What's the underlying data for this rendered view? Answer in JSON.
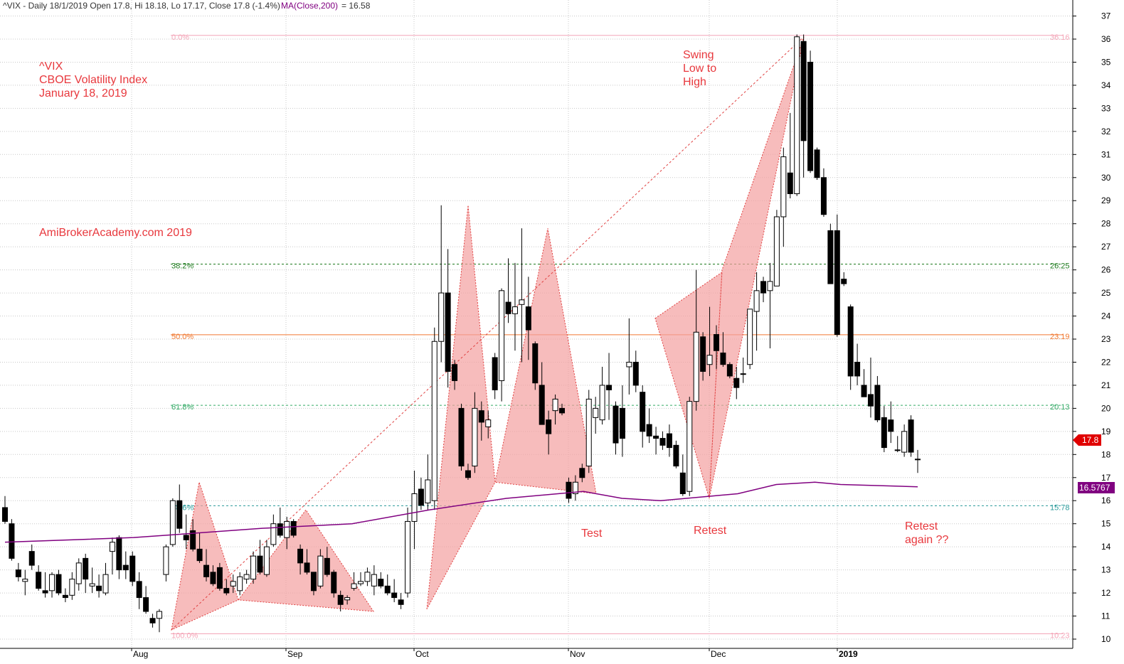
{
  "header": {
    "symbol_info": "^VIX - Daily 18/1/2019 Open 17.8, Hi 18.18, Lo 17.17, Close 17.8 (-1.4%)",
    "ma_label": "MA(Close,200)",
    "ma_value": "= 16.58"
  },
  "annotations": {
    "title_1": "^VIX",
    "title_2": "CBOE Volatility Index",
    "title_3": "January 18, 2019",
    "site": "AmiBrokerAcademy.com  2019",
    "swing_1": "Swing",
    "swing_2": "Low to",
    "swing_3": "High",
    "test": "Test",
    "retest": "Retest",
    "retest_again_1": "Retest",
    "retest_again_2": "again ??"
  },
  "price_labels": {
    "close": "17.8",
    "ma": "16.5767"
  },
  "colors": {
    "accent_red": "#e8383d",
    "ma_line": "#800080",
    "pattern_fill": "#f4a0a0",
    "fib_0_100": "#f4a6b8",
    "fib_382": "#1d7a1d",
    "fib_500": "#f07830",
    "fib_618": "#33aa66",
    "fib_786": "#2a9a9a"
  },
  "chart_data": {
    "type": "candlestick",
    "y_axis": {
      "min": 10,
      "max": 37,
      "ticks": [
        10,
        11,
        12,
        13,
        14,
        15,
        16,
        17,
        18,
        19,
        20,
        21,
        22,
        23,
        24,
        25,
        26,
        27,
        28,
        29,
        30,
        31,
        32,
        33,
        34,
        35,
        36,
        37
      ],
      "position": "right"
    },
    "x_axis": {
      "labels": [
        {
          "label": "Aug",
          "day": 5
        },
        {
          "label": "Sep",
          "day": 17
        },
        {
          "label": "Oct",
          "day": 27
        },
        {
          "label": "Nov",
          "day": 39
        },
        {
          "label": "Dec",
          "day": 50
        },
        {
          "label": "2019",
          "day": 60
        }
      ]
    },
    "grid": true,
    "fibonacci_levels": [
      {
        "pct": "0.0%",
        "price": 36.16,
        "price_label": "36.16"
      },
      {
        "pct": "38.2%",
        "price": 26.25,
        "price_label": "26.25"
      },
      {
        "pct": "50.0%",
        "price": 23.19,
        "price_label": "23.19"
      },
      {
        "pct": "61.8%",
        "price": 20.13,
        "price_label": "20.13"
      },
      {
        "pct": "78.6%",
        "price": 15.78,
        "price_label": "15.78"
      },
      {
        "pct": "100.0%",
        "price": 10.23,
        "price_label": "10.23"
      }
    ],
    "ma200": {
      "name": "MA(Close,200)",
      "points": [
        [
          0,
          14.2
        ],
        [
          10,
          14.4
        ],
        [
          20,
          14.8
        ],
        [
          27,
          15.0
        ],
        [
          33,
          15.6
        ],
        [
          39,
          16.1
        ],
        [
          45,
          16.4
        ],
        [
          48,
          16.1
        ],
        [
          51,
          16.0
        ],
        [
          55,
          16.2
        ],
        [
          57,
          16.3
        ],
        [
          60,
          16.7
        ],
        [
          63,
          16.8
        ],
        [
          65,
          16.7
        ],
        [
          71,
          16.6
        ]
      ]
    },
    "candles": [
      {
        "o": 15.7,
        "h": 16.2,
        "l": 15.0,
        "c": 15.1
      },
      {
        "o": 15.0,
        "h": 15.2,
        "l": 13.4,
        "c": 13.5
      },
      {
        "o": 13.0,
        "h": 13.3,
        "l": 12.5,
        "c": 12.7
      },
      {
        "o": 12.5,
        "h": 13.0,
        "l": 11.9,
        "c": 12.6
      },
      {
        "o": 13.8,
        "h": 14.1,
        "l": 13.0,
        "c": 13.2
      },
      {
        "o": 12.9,
        "h": 13.2,
        "l": 12.1,
        "c": 12.2
      },
      {
        "o": 12.1,
        "h": 12.9,
        "l": 11.8,
        "c": 12.0
      },
      {
        "o": 12.1,
        "h": 12.9,
        "l": 11.8,
        "c": 12.8
      },
      {
        "o": 12.8,
        "h": 13.0,
        "l": 11.9,
        "c": 12.0
      },
      {
        "o": 11.9,
        "h": 12.2,
        "l": 11.6,
        "c": 11.8
      },
      {
        "o": 11.9,
        "h": 12.9,
        "l": 11.7,
        "c": 12.6
      },
      {
        "o": 12.4,
        "h": 13.5,
        "l": 12.1,
        "c": 13.3
      },
      {
        "o": 13.5,
        "h": 13.7,
        "l": 12.0,
        "c": 12.6
      },
      {
        "o": 12.3,
        "h": 13.1,
        "l": 12.0,
        "c": 12.4
      },
      {
        "o": 12.3,
        "h": 12.8,
        "l": 11.8,
        "c": 12.1
      },
      {
        "o": 12.0,
        "h": 13.3,
        "l": 11.9,
        "c": 12.8
      },
      {
        "o": 13.8,
        "h": 14.4,
        "l": 12.8,
        "c": 14.2
      },
      {
        "o": 14.4,
        "h": 14.5,
        "l": 12.6,
        "c": 13.0
      },
      {
        "o": 13.2,
        "h": 13.8,
        "l": 12.6,
        "c": 13.0
      },
      {
        "o": 13.6,
        "h": 13.8,
        "l": 12.3,
        "c": 12.5
      },
      {
        "o": 12.5,
        "h": 12.9,
        "l": 11.3,
        "c": 11.8
      },
      {
        "o": 11.8,
        "h": 12.3,
        "l": 11.1,
        "c": 11.2
      },
      {
        "o": 10.9,
        "h": 11.1,
        "l": 10.5,
        "c": 10.7
      },
      {
        "o": 10.9,
        "h": 11.3,
        "l": 10.3,
        "c": 11.2
      }
    ],
    "candle_days_note": "Candles listed for the first trading days shown; additional candles drawn from candles_2",
    "candles_2": [
      {
        "o": 12.8,
        "h": 14.1,
        "l": 12.5,
        "c": 14.0
      },
      {
        "o": 14.1,
        "h": 16.1,
        "l": 14.0,
        "c": 16.0
      },
      {
        "o": 16.0,
        "h": 16.7,
        "l": 14.6,
        "c": 14.8
      },
      {
        "o": 14.5,
        "h": 15.4,
        "l": 13.9,
        "c": 14.3
      },
      {
        "o": 14.7,
        "h": 15.2,
        "l": 13.8,
        "c": 13.9
      },
      {
        "o": 13.9,
        "h": 14.6,
        "l": 13.3,
        "c": 13.4
      },
      {
        "o": 13.2,
        "h": 13.9,
        "l": 12.5,
        "c": 12.7
      },
      {
        "o": 12.9,
        "h": 13.2,
        "l": 12.3,
        "c": 12.4
      },
      {
        "o": 13.1,
        "h": 13.3,
        "l": 12.1,
        "c": 12.2
      },
      {
        "o": 12.2,
        "h": 12.6,
        "l": 11.9,
        "c": 12.0
      },
      {
        "o": 12.3,
        "h": 12.8,
        "l": 12.0,
        "c": 12.5
      },
      {
        "o": 12.1,
        "h": 12.9,
        "l": 11.9,
        "c": 12.7
      },
      {
        "o": 12.6,
        "h": 13.0,
        "l": 12.4,
        "c": 12.8
      },
      {
        "o": 12.6,
        "h": 13.8,
        "l": 12.4,
        "c": 13.6
      },
      {
        "o": 13.6,
        "h": 14.3,
        "l": 12.8,
        "c": 12.9
      },
      {
        "o": 12.8,
        "h": 14.3,
        "l": 12.7,
        "c": 14.0
      },
      {
        "o": 14.1,
        "h": 15.4,
        "l": 14.0,
        "c": 15.0
      },
      {
        "o": 15.0,
        "h": 15.7,
        "l": 14.4,
        "c": 14.5
      },
      {
        "o": 14.4,
        "h": 15.3,
        "l": 13.9,
        "c": 15.1
      },
      {
        "o": 15.1,
        "h": 15.2,
        "l": 14.4,
        "c": 14.5
      },
      {
        "o": 13.9,
        "h": 14.1,
        "l": 12.8,
        "c": 13.3
      },
      {
        "o": 13.3,
        "h": 13.9,
        "l": 12.8,
        "c": 12.9
      },
      {
        "o": 12.9,
        "h": 12.9,
        "l": 11.9,
        "c": 12.1
      },
      {
        "o": 12.3,
        "h": 13.9,
        "l": 12.2,
        "c": 13.6
      },
      {
        "o": 13.5,
        "h": 14.0,
        "l": 12.7,
        "c": 12.8
      },
      {
        "o": 12.9,
        "h": 13.0,
        "l": 11.8,
        "c": 12.0
      },
      {
        "o": 11.9,
        "h": 12.1,
        "l": 11.2,
        "c": 11.5
      },
      {
        "o": 11.7,
        "h": 11.9,
        "l": 11.5,
        "c": 11.8
      },
      {
        "o": 12.2,
        "h": 12.9,
        "l": 12.1,
        "c": 12.4
      },
      {
        "o": 12.4,
        "h": 12.9,
        "l": 12.3,
        "c": 12.5
      },
      {
        "o": 12.5,
        "h": 13.1,
        "l": 12.3,
        "c": 12.9
      },
      {
        "o": 12.3,
        "h": 13.2,
        "l": 11.9,
        "c": 12.8
      },
      {
        "o": 12.6,
        "h": 12.9,
        "l": 12.2,
        "c": 12.3
      },
      {
        "o": 12.3,
        "h": 12.8,
        "l": 11.9,
        "c": 12.0
      },
      {
        "o": 12.0,
        "h": 12.6,
        "l": 11.6,
        "c": 11.8
      },
      {
        "o": 11.7,
        "h": 12.0,
        "l": 11.3,
        "c": 11.5
      },
      {
        "o": 12.0,
        "h": 15.7,
        "l": 11.8,
        "c": 15.1
      },
      {
        "o": 15.1,
        "h": 17.3,
        "l": 13.9,
        "c": 16.3
      },
      {
        "o": 16.5,
        "h": 17.0,
        "l": 15.6,
        "c": 15.8
      },
      {
        "o": 15.9,
        "h": 18.0,
        "l": 15.6,
        "c": 16.9
      },
      {
        "o": 16.0,
        "h": 23.5,
        "l": 15.6,
        "c": 22.9
      },
      {
        "o": 22.9,
        "h": 28.8,
        "l": 22.0,
        "c": 25.0
      },
      {
        "o": 25.0,
        "h": 26.9,
        "l": 20.9,
        "c": 21.6
      },
      {
        "o": 21.9,
        "h": 22.1,
        "l": 20.8,
        "c": 21.2
      },
      {
        "o": 20.0,
        "h": 20.2,
        "l": 17.3,
        "c": 17.5
      },
      {
        "o": 17.3,
        "h": 17.6,
        "l": 16.9,
        "c": 17.0
      },
      {
        "o": 17.5,
        "h": 20.7,
        "l": 17.2,
        "c": 20.0
      },
      {
        "o": 19.9,
        "h": 20.3,
        "l": 18.6,
        "c": 19.4
      },
      {
        "o": 19.2,
        "h": 19.9,
        "l": 18.7,
        "c": 19.5
      },
      {
        "o": 22.2,
        "h": 22.4,
        "l": 20.4,
        "c": 20.8
      },
      {
        "o": 21.2,
        "h": 25.2,
        "l": 20.3,
        "c": 25.1
      },
      {
        "o": 24.6,
        "h": 26.5,
        "l": 23.7,
        "c": 24.1
      },
      {
        "o": 24.1,
        "h": 26.3,
        "l": 22.5,
        "c": 24.4
      },
      {
        "o": 24.5,
        "h": 27.8,
        "l": 22.0,
        "c": 24.7
      },
      {
        "o": 24.4,
        "h": 25.7,
        "l": 22.1,
        "c": 23.4
      },
      {
        "o": 22.8,
        "h": 22.9,
        "l": 20.8,
        "c": 21.1
      },
      {
        "o": 21.0,
        "h": 22.0,
        "l": 19.5,
        "c": 19.3
      },
      {
        "o": 19.5,
        "h": 19.9,
        "l": 18.0,
        "c": 18.9
      },
      {
        "o": 19.9,
        "h": 20.6,
        "l": 19.3,
        "c": 20.4
      },
      {
        "o": 20.0,
        "h": 20.2,
        "l": 19.7,
        "c": 19.8
      },
      {
        "o": 16.8,
        "h": 17.0,
        "l": 15.9,
        "c": 16.1
      },
      {
        "o": 16.3,
        "h": 17.1,
        "l": 16.0,
        "c": 16.8
      },
      {
        "o": 17.4,
        "h": 17.6,
        "l": 16.8,
        "c": 17.0
      },
      {
        "o": 17.5,
        "h": 20.8,
        "l": 17.2,
        "c": 20.4
      },
      {
        "o": 19.6,
        "h": 20.5,
        "l": 18.9,
        "c": 20.0
      },
      {
        "o": 19.5,
        "h": 21.8,
        "l": 19.3,
        "c": 21.0
      },
      {
        "o": 21.0,
        "h": 22.4,
        "l": 19.5,
        "c": 20.8
      },
      {
        "o": 20.1,
        "h": 20.3,
        "l": 18.0,
        "c": 18.5
      },
      {
        "o": 20.0,
        "h": 21.0,
        "l": 17.9,
        "c": 18.7
      },
      {
        "o": 21.8,
        "h": 23.9,
        "l": 20.6,
        "c": 22.0
      },
      {
        "o": 22.0,
        "h": 22.5,
        "l": 20.7,
        "c": 21.0
      },
      {
        "o": 20.7,
        "h": 21.0,
        "l": 18.3,
        "c": 19.0
      },
      {
        "o": 19.3,
        "h": 20.0,
        "l": 18.5,
        "c": 18.8
      },
      {
        "o": 18.8,
        "h": 19.2,
        "l": 18.0,
        "c": 18.7
      },
      {
        "o": 18.7,
        "h": 19.0,
        "l": 18.2,
        "c": 18.4
      },
      {
        "o": 18.9,
        "h": 19.3,
        "l": 17.9,
        "c": 18.3
      },
      {
        "o": 18.4,
        "h": 18.6,
        "l": 17.4,
        "c": 17.5
      },
      {
        "o": 17.2,
        "h": 18.0,
        "l": 16.2,
        "c": 16.3
      },
      {
        "o": 16.4,
        "h": 20.5,
        "l": 16.2,
        "c": 20.3
      },
      {
        "o": 20.3,
        "h": 26.0,
        "l": 19.9,
        "c": 23.3
      },
      {
        "o": 23.1,
        "h": 23.3,
        "l": 21.2,
        "c": 21.6
      },
      {
        "o": 21.9,
        "h": 24.4,
        "l": 21.4,
        "c": 22.3
      },
      {
        "o": 23.2,
        "h": 23.6,
        "l": 21.7,
        "c": 22.5
      },
      {
        "o": 22.4,
        "h": 23.3,
        "l": 21.8,
        "c": 21.9
      },
      {
        "o": 21.9,
        "h": 22.0,
        "l": 21.3,
        "c": 21.4
      },
      {
        "o": 21.3,
        "h": 21.8,
        "l": 20.4,
        "c": 20.9
      },
      {
        "o": 21.5,
        "h": 22.2,
        "l": 21.1,
        "c": 21.5
      },
      {
        "o": 21.9,
        "h": 24.2,
        "l": 21.7,
        "c": 24.3
      },
      {
        "o": 24.2,
        "h": 25.9,
        "l": 22.5,
        "c": 25.1
      },
      {
        "o": 25.5,
        "h": 25.7,
        "l": 24.6,
        "c": 25.0
      },
      {
        "o": 25.1,
        "h": 26.3,
        "l": 22.6,
        "c": 25.5
      },
      {
        "o": 25.3,
        "h": 28.6,
        "l": 25.6,
        "c": 28.3
      },
      {
        "o": 28.3,
        "h": 31.3,
        "l": 27.0,
        "c": 30.9
      },
      {
        "o": 30.2,
        "h": 32.8,
        "l": 29.1,
        "c": 29.3
      },
      {
        "o": 29.3,
        "h": 36.2,
        "l": 29.2,
        "c": 36.1
      },
      {
        "o": 35.9,
        "h": 36.2,
        "l": 30.0,
        "c": 31.6
      },
      {
        "o": 35.0,
        "h": 35.5,
        "l": 30.2,
        "c": 30.3
      },
      {
        "o": 31.2,
        "h": 31.3,
        "l": 29.9,
        "c": 30.0
      },
      {
        "o": 30.0,
        "h": 30.4,
        "l": 28.3,
        "c": 28.4
      },
      {
        "o": 27.7,
        "h": 28.0,
        "l": 25.4,
        "c": 25.4
      },
      {
        "o": 27.7,
        "h": 28.4,
        "l": 23.1,
        "c": 23.2
      },
      {
        "o": 25.6,
        "h": 25.9,
        "l": 25.3,
        "c": 25.4
      },
      {
        "o": 24.4,
        "h": 24.5,
        "l": 20.8,
        "c": 21.4
      },
      {
        "o": 22.0,
        "h": 22.8,
        "l": 21.0,
        "c": 21.4
      },
      {
        "o": 21.0,
        "h": 21.7,
        "l": 20.6,
        "c": 20.5
      },
      {
        "o": 20.6,
        "h": 22.2,
        "l": 19.6,
        "c": 20.1
      },
      {
        "o": 21.0,
        "h": 21.4,
        "l": 19.4,
        "c": 19.5
      },
      {
        "o": 19.6,
        "h": 20.1,
        "l": 18.1,
        "c": 18.3
      },
      {
        "o": 19.5,
        "h": 20.3,
        "l": 18.5,
        "c": 19.0
      },
      {
        "o": 18.2,
        "h": 18.8,
        "l": 18.1,
        "c": 18.2
      },
      {
        "o": 18.1,
        "h": 19.3,
        "l": 17.9,
        "c": 19.0
      },
      {
        "o": 19.5,
        "h": 19.7,
        "l": 17.9,
        "c": 18.1
      },
      {
        "o": 17.8,
        "h": 18.2,
        "l": 17.2,
        "c": 17.8
      }
    ],
    "patterns": [
      {
        "name": "pattern-aug",
        "points": [
          [
            241,
            10.4
          ],
          [
            280,
            16.8
          ],
          [
            335,
            11.7
          ],
          [
            241,
            10.4
          ]
        ]
      },
      {
        "name": "pattern-aug-sep",
        "points": [
          [
            335,
            11.7
          ],
          [
            430,
            15.6
          ],
          [
            525,
            11.2
          ],
          [
            335,
            11.7
          ]
        ]
      },
      {
        "name": "pattern-oct",
        "points": [
          [
            600,
            11.3
          ],
          [
            658,
            28.8
          ],
          [
            696,
            16.8
          ],
          [
            600,
            11.3
          ]
        ]
      },
      {
        "name": "pattern-oct-nov",
        "points": [
          [
            696,
            16.8
          ],
          [
            770,
            27.8
          ],
          [
            838,
            16.3
          ],
          [
            696,
            16.8
          ]
        ]
      },
      {
        "name": "pattern-nov-dec",
        "points": [
          [
            921,
            23.9
          ],
          [
            1015,
            25.9
          ],
          [
            997,
            16.1
          ],
          [
            921,
            23.9
          ]
        ]
      },
      {
        "name": "pattern-dec",
        "points": [
          [
            997,
            16.1
          ],
          [
            1015,
            26.0
          ],
          [
            1130,
            36.1
          ],
          [
            997,
            16.1
          ]
        ]
      }
    ],
    "dashed_trend": {
      "from": [
        241,
        10.4
      ],
      "to": [
        1130,
        36.1
      ]
    }
  }
}
